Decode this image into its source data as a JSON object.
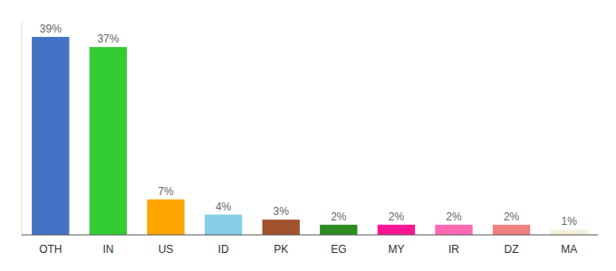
{
  "chart_data": {
    "type": "bar",
    "categories": [
      "OTH",
      "IN",
      "US",
      "ID",
      "PK",
      "EG",
      "MY",
      "IR",
      "DZ",
      "MA"
    ],
    "values": [
      39,
      37,
      7,
      4,
      3,
      2,
      2,
      2,
      2,
      1
    ],
    "value_labels": [
      "39%",
      "37%",
      "7%",
      "4%",
      "3%",
      "2%",
      "2%",
      "2%",
      "2%",
      "1%"
    ],
    "colors": [
      "#4472C4",
      "#33CC33",
      "#FFA500",
      "#87CEEB",
      "#A0522D",
      "#2E8B22",
      "#FF1493",
      "#FF69B4",
      "#F08080",
      "#F5F0DC"
    ],
    "ylim": [
      0,
      42
    ],
    "data_labels": true,
    "tick_labels": "x"
  }
}
